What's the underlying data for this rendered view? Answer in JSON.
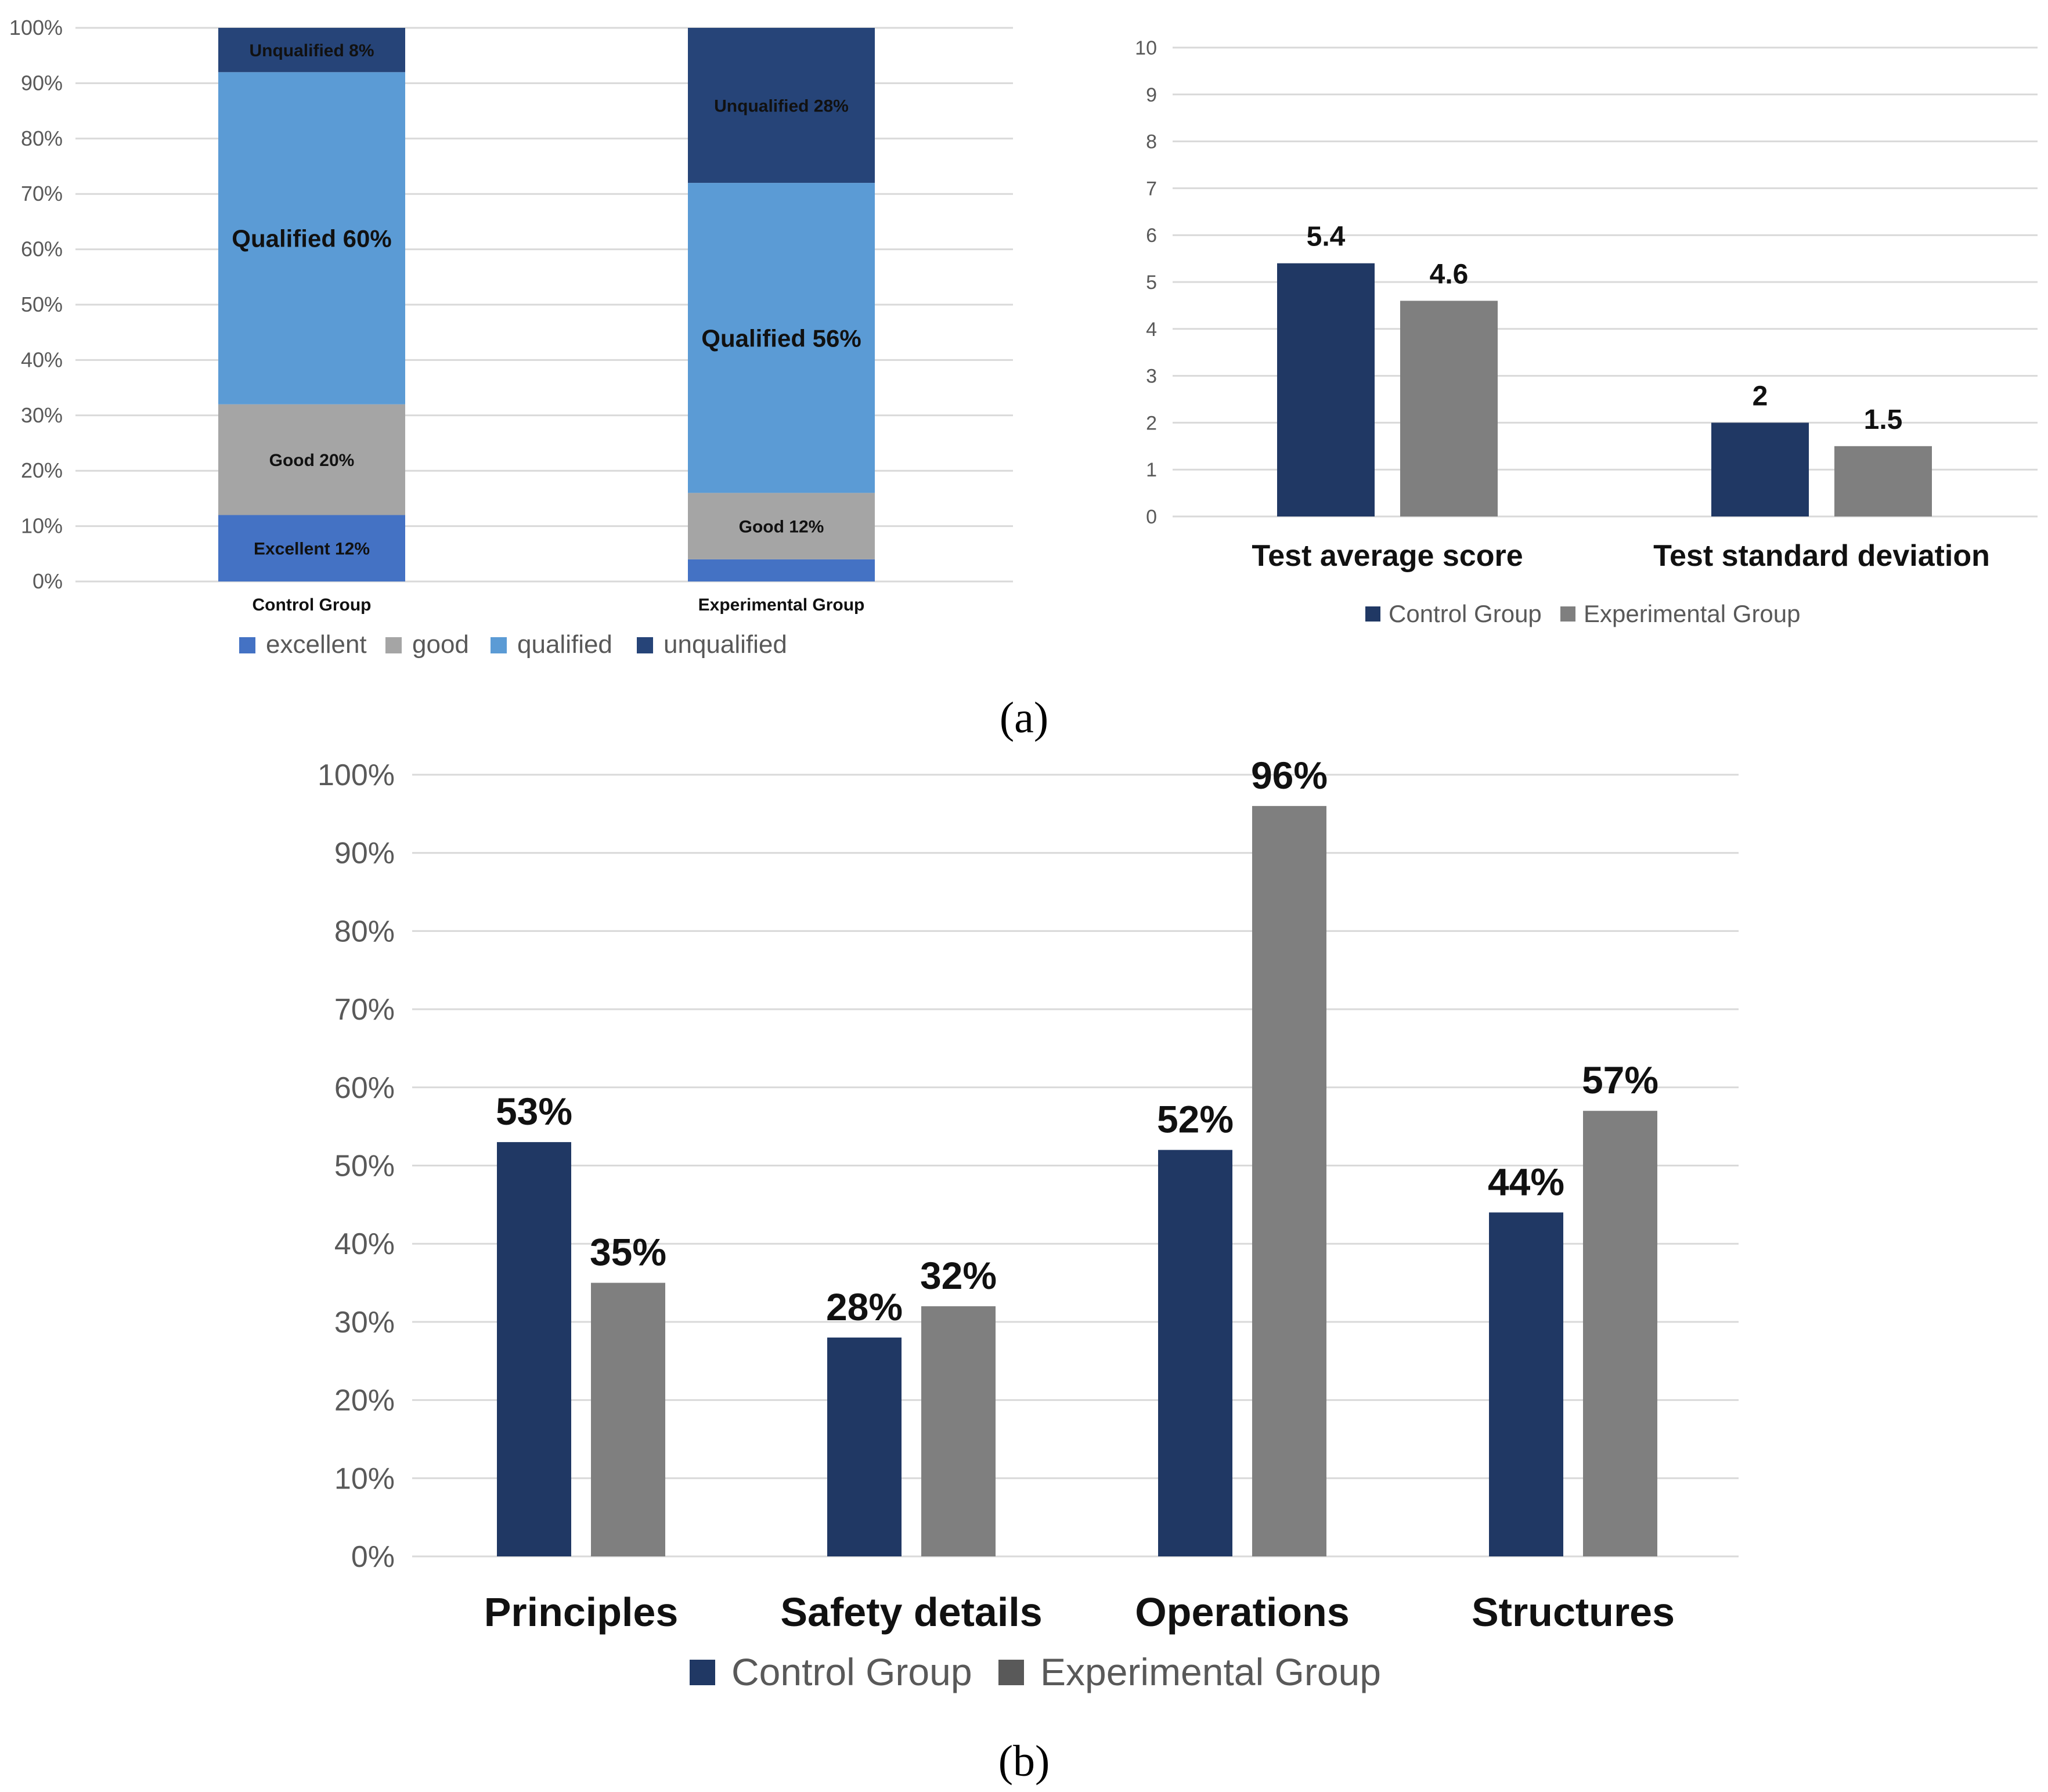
{
  "colors": {
    "excellent": "#4472C4",
    "good": "#A5A5A5",
    "qualified": "#5B9BD5",
    "unqualified": "#264478",
    "control": "#203864",
    "experimental": "#7F7F7F",
    "grid": "#D9D9D9"
  },
  "panel_labels": {
    "a": "(a)",
    "b": "(b)"
  },
  "chart_data": [
    {
      "type": "bar",
      "stacked": true,
      "categories": [
        "Control Group",
        "Experimental Group"
      ],
      "series": [
        {
          "name": "excellent",
          "values": [
            12,
            4
          ],
          "labels": [
            "Excellent 12%",
            ""
          ]
        },
        {
          "name": "good",
          "values": [
            20,
            12
          ],
          "labels": [
            "Good  20%",
            "Good 12%"
          ]
        },
        {
          "name": "qualified",
          "values": [
            60,
            56
          ],
          "labels": [
            "Qualified 60%",
            "Qualified 56%"
          ]
        },
        {
          "name": "unqualified",
          "values": [
            8,
            28
          ],
          "labels": [
            "Unqualified 8%",
            "Unqualified 28%"
          ]
        }
      ],
      "yticks": [
        "0%",
        "10%",
        "20%",
        "30%",
        "40%",
        "50%",
        "60%",
        "70%",
        "80%",
        "90%",
        "100%"
      ],
      "ylim": [
        0,
        100
      ],
      "legend": "bottom"
    },
    {
      "type": "bar",
      "categories": [
        "Test average score",
        "Test standard deviation"
      ],
      "series": [
        {
          "name": "Control Group",
          "values": [
            5.4,
            2
          ],
          "labels": [
            "5.4",
            "2"
          ]
        },
        {
          "name": "Experimental Group",
          "values": [
            4.6,
            1.5
          ],
          "labels": [
            "4.6",
            "1.5"
          ]
        }
      ],
      "yticks": [
        "0",
        "1",
        "2",
        "3",
        "4",
        "5",
        "6",
        "7",
        "8",
        "9",
        "10"
      ],
      "ylim": [
        0,
        10
      ],
      "legend": "bottom"
    },
    {
      "type": "bar",
      "categories": [
        "Principles",
        "Safety details",
        "Operations",
        "Structures"
      ],
      "series": [
        {
          "name": "Control Group",
          "values": [
            53,
            28,
            52,
            44
          ],
          "labels": [
            "53%",
            "28%",
            "52%",
            "44%"
          ]
        },
        {
          "name": "Experimental Group",
          "values": [
            35,
            32,
            96,
            57
          ],
          "labels": [
            "35%",
            "32%",
            "96%",
            "57%"
          ]
        }
      ],
      "yticks": [
        "0%",
        "10%",
        "20%",
        "30%",
        "40%",
        "50%",
        "60%",
        "70%",
        "80%",
        "90%",
        "100%"
      ],
      "ylim": [
        0,
        100
      ],
      "legend": "bottom"
    }
  ]
}
